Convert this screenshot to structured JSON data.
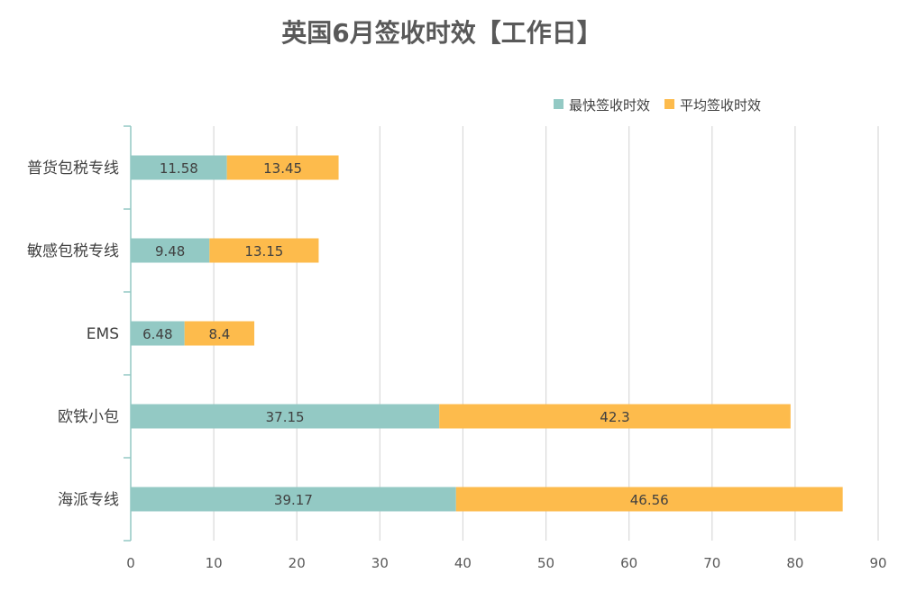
{
  "chart_data": {
    "type": "bar",
    "orientation": "horizontal",
    "stacked": true,
    "title": "英国6月签收时效【工作日】",
    "categories": [
      "普货包税专线",
      "敏感包税专线",
      "EMS",
      "欧铁小包",
      "海派专线"
    ],
    "series": [
      {
        "name": "最快签收时效",
        "color": "#93C9C4",
        "values": [
          11.58,
          9.48,
          6.48,
          37.15,
          39.17
        ]
      },
      {
        "name": "平均签收时效",
        "color": "#FDBB4C",
        "values": [
          13.45,
          13.15,
          8.4,
          42.3,
          46.56
        ]
      }
    ],
    "x_ticks": [
      0,
      10,
      20,
      30,
      40,
      50,
      60,
      70,
      80,
      90
    ],
    "xlim": [
      0,
      90
    ],
    "grid": true,
    "legend_position": "top-right"
  }
}
